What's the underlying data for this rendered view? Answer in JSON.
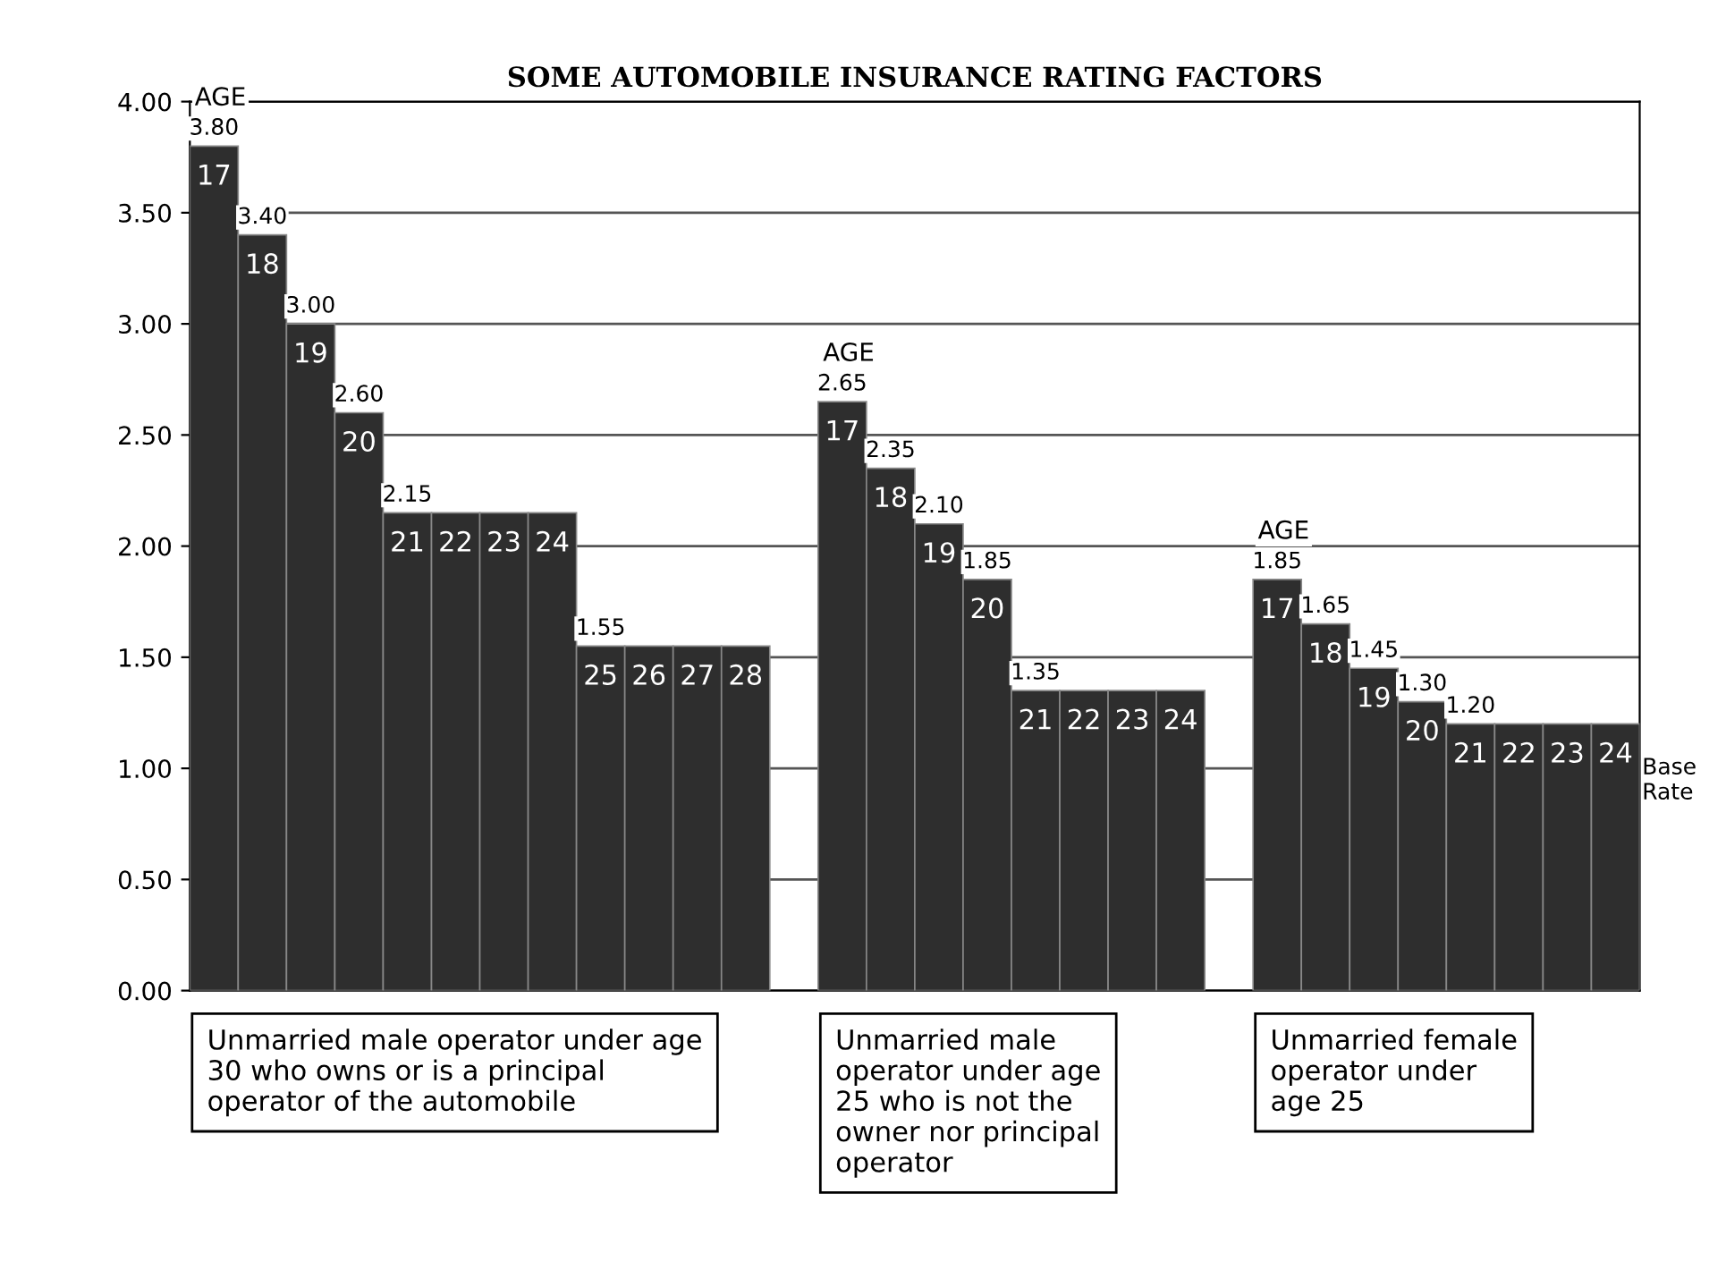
{
  "chart_data": {
    "type": "bar",
    "title": "SOME AUTOMOBILE INSURANCE RATING FACTORS",
    "categories": [
      "17",
      "18",
      "19",
      "20",
      "21",
      "22",
      "23",
      "24",
      "25",
      "26",
      "27",
      "28",
      null,
      "17",
      "18",
      "19",
      "20",
      "21",
      "22",
      "23",
      "24",
      null,
      "17",
      "18",
      "19",
      "20",
      "21",
      "22",
      "23",
      "24"
    ],
    "values": [
      3.8,
      3.4,
      3.0,
      2.6,
      2.15,
      2.15,
      2.15,
      2.15,
      1.55,
      1.55,
      1.55,
      1.55,
      null,
      2.65,
      2.35,
      2.1,
      1.85,
      1.35,
      1.35,
      1.35,
      1.35,
      null,
      1.85,
      1.65,
      1.45,
      1.3,
      1.2,
      1.2,
      1.2,
      1.2
    ],
    "value_labels": [
      "3.80",
      "3.40",
      "3.00",
      "2.60",
      "2.15",
      null,
      null,
      null,
      "1.55",
      null,
      null,
      null,
      null,
      "2.65",
      "2.35",
      "2.10",
      "1.85",
      "1.35",
      null,
      null,
      null,
      null,
      "1.85",
      "1.65",
      "1.45",
      "1.30",
      "1.20",
      null,
      null,
      null
    ],
    "color": "#2e2e2e",
    "ylim": [
      0,
      4
    ],
    "yticks": [
      {
        "value": 0,
        "label": "0.00"
      },
      {
        "value": 0.5,
        "label": "0.50"
      },
      {
        "value": 1,
        "label": "1.00"
      },
      {
        "value": 1.5,
        "label": "1.50"
      },
      {
        "value": 2,
        "label": "2.00"
      },
      {
        "value": 2.5,
        "label": "2.50"
      },
      {
        "value": 3,
        "label": "3.00"
      },
      {
        "value": 3.5,
        "label": "3.50"
      },
      {
        "value": 4,
        "label": "4.00"
      }
    ],
    "grid": "y",
    "annotations": [
      "AGE",
      "AGE",
      "AGE",
      "Base Rate",
      "Unmarried male operator under age 30 who owns or is a principal operator of the automobile",
      "Unmarried male operator under age 25 who is not the owner nor principal operator",
      "Unmarried female operator under age 25"
    ]
  }
}
